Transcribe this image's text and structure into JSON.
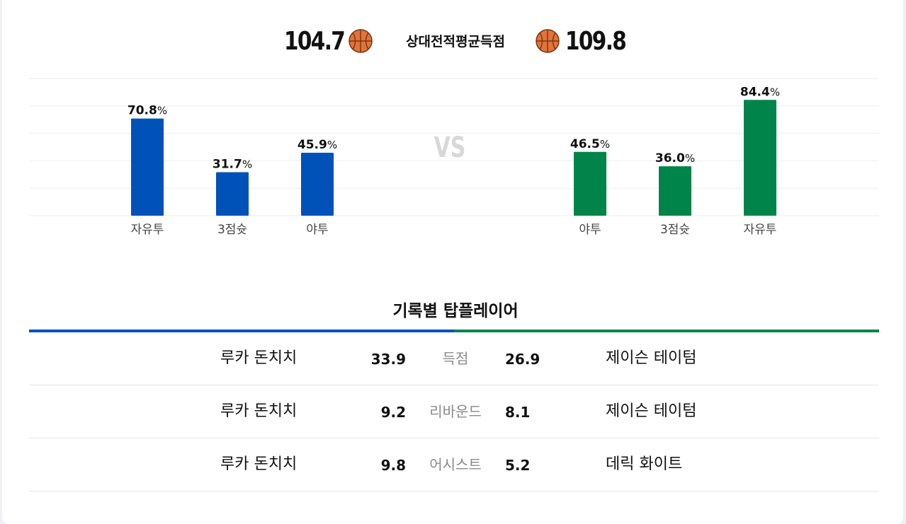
{
  "header": {
    "left_score": "104.7",
    "title": "상대전적평균득점",
    "right_score": "109.8",
    "ball_icon": "basketball-icon"
  },
  "vs_label": "VS",
  "colors": {
    "left_team": "#0052b8",
    "right_team": "#00844a",
    "vs": "#d8d8d8",
    "grid": "#eeeeee"
  },
  "chart_data": [
    {
      "type": "bar",
      "series_side": "left",
      "categories": [
        "자유투",
        "3점슛",
        "야투"
      ],
      "values": [
        70.8,
        31.7,
        45.9
      ],
      "value_labels": [
        "70.8",
        "31.7",
        "45.9"
      ],
      "unit": "%",
      "ylim": [
        0,
        100
      ],
      "grid": true
    },
    {
      "type": "bar",
      "series_side": "right",
      "categories": [
        "야투",
        "3점슛",
        "자유투"
      ],
      "values": [
        46.5,
        36.0,
        84.4
      ],
      "value_labels": [
        "46.5",
        "36.0",
        "84.4"
      ],
      "unit": "%",
      "ylim": [
        0,
        100
      ],
      "grid": true
    }
  ],
  "top_plays": {
    "title": "기록별 탑플레이어",
    "rows": [
      {
        "left_player": "루카 돈치치",
        "left_value": "33.9",
        "category": "득점",
        "right_value": "26.9",
        "right_player": "제이슨 테이텀"
      },
      {
        "left_player": "루카 돈치치",
        "left_value": "9.2",
        "category": "리바운드",
        "right_value": "8.1",
        "right_player": "제이슨 테이텀"
      },
      {
        "left_player": "루카 돈치치",
        "left_value": "9.8",
        "category": "어시스트",
        "right_value": "5.2",
        "right_player": "데릭 화이트"
      }
    ]
  }
}
